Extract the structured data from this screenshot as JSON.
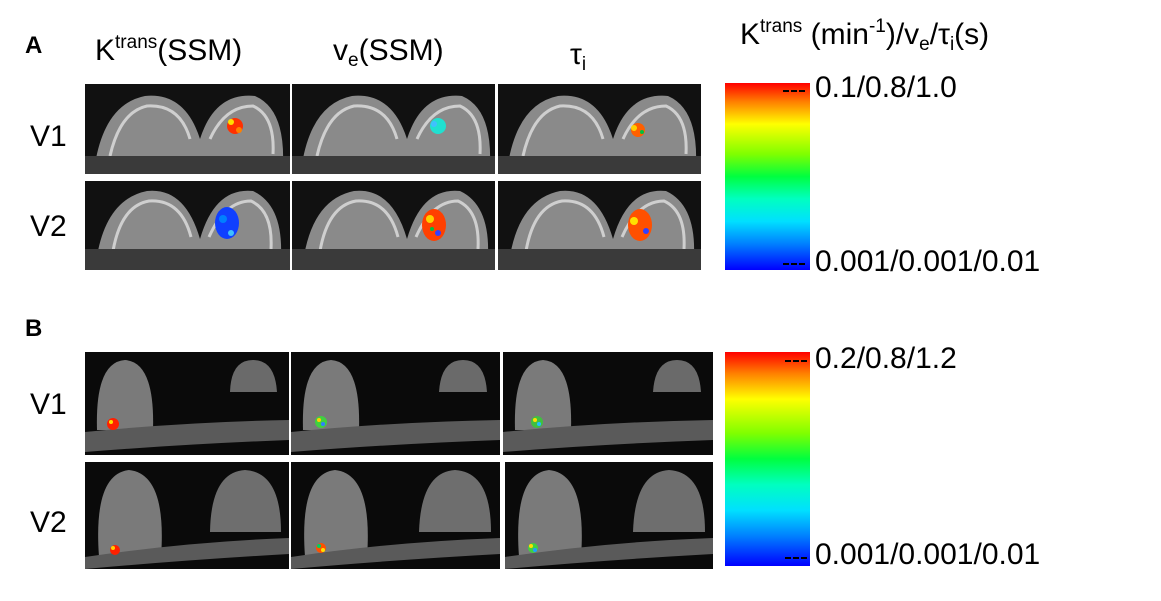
{
  "panelA": {
    "label": "A",
    "col_headers": {
      "c1": {
        "main": "K",
        "sup": "trans",
        "tail": "(SSM)"
      },
      "c2": {
        "main": "v",
        "sub": "e",
        "tail": "(SSM)"
      },
      "c3": {
        "main": "τ",
        "sub": "i"
      }
    },
    "rows": [
      "V1",
      "V2"
    ],
    "colorbar": {
      "title_parts": {
        "k": "K",
        "trans": "trans",
        "unit_pre": " (min",
        "exp": "-1",
        "unit_post": ")/v",
        "e": "e",
        "slash_tau": "/τ",
        "i": "i",
        "s": "(s)"
      },
      "max": "0.1/0.8/1.0",
      "min": "0.001/0.001/0.01"
    }
  },
  "panelB": {
    "label": "B",
    "rows": [
      "V1",
      "V2"
    ],
    "colorbar": {
      "max": "0.2/0.8/1.2",
      "min": "0.001/0.001/0.01"
    }
  },
  "colors": {
    "colormap_top": "#ff0000",
    "colormap_bottom": "#0000ff",
    "image_background": "#000000"
  }
}
